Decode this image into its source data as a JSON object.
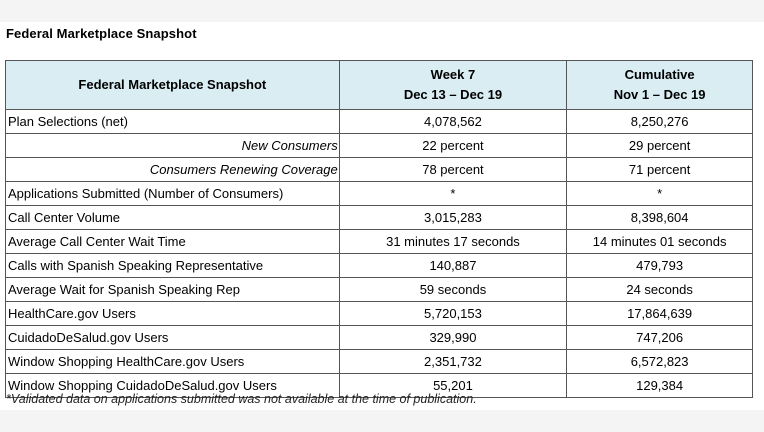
{
  "page_title": "Federal Marketplace Snapshot",
  "table": {
    "header": {
      "label": "Federal Marketplace Snapshot",
      "col2_line1": "Week 7",
      "col2_line2": "Dec 13  – Dec 19",
      "col3_line1": "Cumulative",
      "col3_line2": "Nov 1 – Dec 19"
    },
    "rows": [
      {
        "label": "Plan Selections (net)",
        "sub": false,
        "week": "4,078,562",
        "cumulative": "8,250,276"
      },
      {
        "label": "New Consumers",
        "sub": true,
        "week": "22 percent",
        "cumulative": "29 percent"
      },
      {
        "label": "Consumers Renewing Coverage",
        "sub": true,
        "week": "78 percent",
        "cumulative": "71 percent"
      },
      {
        "label": "Applications Submitted (Number of Consumers)",
        "sub": false,
        "week": "*",
        "cumulative": "*"
      },
      {
        "label": "Call Center Volume",
        "sub": false,
        "week": "3,015,283",
        "cumulative": "8,398,604"
      },
      {
        "label": "Average Call Center Wait Time",
        "sub": false,
        "week": "31 minutes 17 seconds",
        "cumulative": "14 minutes 01 seconds"
      },
      {
        "label": "Calls with Spanish Speaking Representative",
        "sub": false,
        "week": "140,887",
        "cumulative": "479,793"
      },
      {
        "label": "Average Wait for Spanish Speaking Rep",
        "sub": false,
        "week": "59 seconds",
        "cumulative": "24 seconds"
      },
      {
        "label": "HealthCare.gov Users",
        "sub": false,
        "week": "5,720,153",
        "cumulative": "17,864,639"
      },
      {
        "label": "CuidadoDeSalud.gov Users",
        "sub": false,
        "week": "329,990",
        "cumulative": "747,206"
      },
      {
        "label": "Window Shopping HealthCare.gov Users",
        "sub": false,
        "week": "2,351,732",
        "cumulative": "6,572,823"
      },
      {
        "label": "Window Shopping CuidadoDeSalud.gov Users",
        "sub": false,
        "week": "55,201",
        "cumulative": "129,384"
      }
    ]
  },
  "footnote": "*Validated data on applications submitted was not available at the time of publication."
}
